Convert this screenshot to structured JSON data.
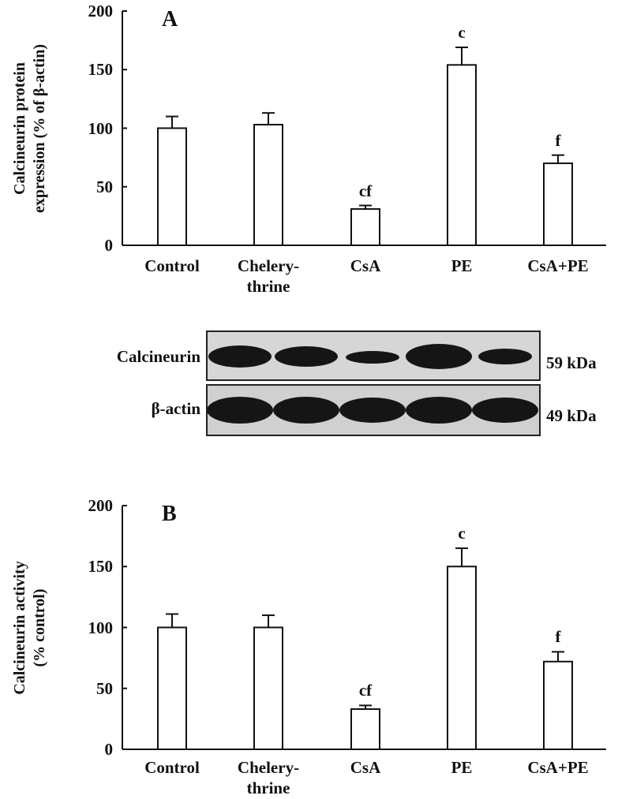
{
  "chart_data": [
    {
      "type": "bar",
      "panel_label": "A",
      "ylabel": "Calcineurin protein\nexpression (% of β-actin)",
      "categories": [
        "Control",
        "Chelery-\nthrine",
        "CsA",
        "PE",
        "CsA+PE"
      ],
      "values": [
        100,
        103,
        31,
        154,
        70
      ],
      "errors": [
        10,
        10,
        3,
        15,
        7
      ],
      "annotations": [
        null,
        null,
        "cf",
        "c",
        "f"
      ],
      "color": "#ffffff",
      "ylim": [
        0,
        200
      ],
      "yticks": [
        0,
        50,
        100,
        150,
        200
      ]
    },
    {
      "type": "bar",
      "panel_label": "B",
      "ylabel": "Calcineurin activity\n(% control)",
      "categories": [
        "Control",
        "Chelery-\nthrine",
        "CsA",
        "PE",
        "CsA+PE"
      ],
      "values": [
        100,
        100,
        33,
        150,
        72
      ],
      "errors": [
        11,
        10,
        3,
        15,
        8
      ],
      "annotations": [
        null,
        null,
        "cf",
        "c",
        "f"
      ],
      "color": "#ffffff",
      "ylim": [
        0,
        200
      ],
      "yticks": [
        0,
        50,
        100,
        150,
        200
      ]
    }
  ],
  "blot": {
    "rows": [
      {
        "label": "Calcineurin",
        "size": "59 kDa"
      },
      {
        "label": "β-actin",
        "size": "49 kDa"
      }
    ]
  }
}
